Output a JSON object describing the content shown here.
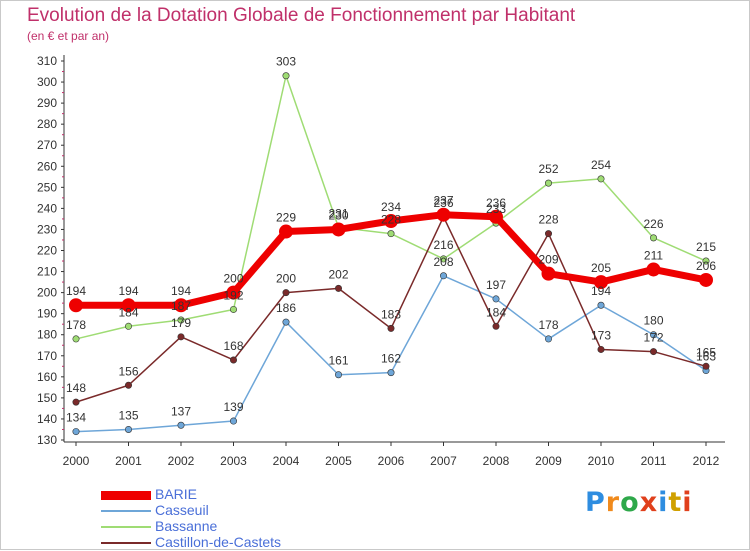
{
  "title": "Evolution de la Dotation Globale de Fonctionnement par Habitant",
  "subtitle": "(en € et par an)",
  "logo": {
    "text": "Proxiti",
    "colors": [
      "#2e8de0",
      "#f08a1c",
      "#2ea84a",
      "#e0401c",
      "#2e8de0",
      "#d0a000",
      "#e0401c"
    ]
  },
  "colors": {
    "title": "#c0306a",
    "axis": "#333333",
    "grid_accent": "#c0306a",
    "legend_text": "#4a6fd8"
  },
  "chart_data": {
    "type": "line",
    "x": [
      "2000",
      "2001",
      "2002",
      "2003",
      "2004",
      "2005",
      "2006",
      "2007",
      "2008",
      "2009",
      "2010",
      "2011",
      "2012"
    ],
    "ylim": [
      130,
      310
    ],
    "ytick_step": 10,
    "grid": false,
    "legend_position": "bottom-left",
    "series": [
      {
        "name": "BARIE",
        "color": "#ee0000",
        "values": [
          194,
          194,
          194,
          200,
          229,
          230,
          234,
          237,
          236,
          209,
          205,
          211,
          206
        ]
      },
      {
        "name": "Casseuil",
        "color": "#6ea6d8",
        "values": [
          134,
          135,
          137,
          139,
          186,
          161,
          162,
          208,
          197,
          178,
          194,
          180,
          163
        ]
      },
      {
        "name": "Bassanne",
        "color": "#9fdc74",
        "values": [
          178,
          184,
          187,
          192,
          303,
          231,
          228,
          216,
          233,
          252,
          254,
          226,
          215
        ]
      },
      {
        "name": "Castillon-de-Castets",
        "color": "#7a2a2a",
        "values": [
          148,
          156,
          179,
          168,
          200,
          202,
          183,
          236,
          184,
          228,
          173,
          172,
          165
        ]
      }
    ]
  }
}
